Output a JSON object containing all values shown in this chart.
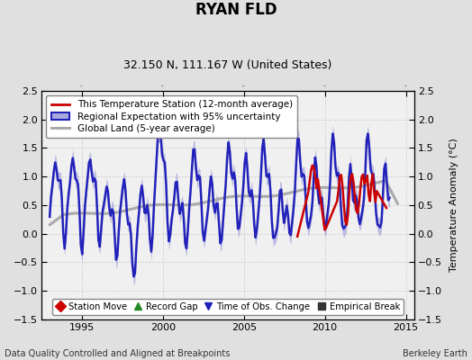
{
  "title": "RYAN FLD",
  "subtitle": "32.150 N, 111.167 W (United States)",
  "ylabel": "Temperature Anomaly (°C)",
  "xlim": [
    1992.5,
    2015.5
  ],
  "ylim": [
    -1.5,
    2.5
  ],
  "yticks": [
    -1.5,
    -1.0,
    -0.5,
    0.0,
    0.5,
    1.0,
    1.5,
    2.0,
    2.5
  ],
  "xticks": [
    1995,
    2000,
    2005,
    2010,
    2015
  ],
  "background_color": "#e0e0e0",
  "plot_bg_color": "#f0f0f0",
  "footer_left": "Data Quality Controlled and Aligned at Breakpoints",
  "footer_right": "Berkeley Earth",
  "legend1_entries": [
    {
      "label": "This Temperature Station (12-month average)",
      "color": "#cc0000",
      "lw": 1.8
    },
    {
      "label": "Regional Expectation with 95% uncertainty",
      "color": "#2222bb",
      "lw": 1.8,
      "fill_color": "#aaaadd"
    },
    {
      "label": "Global Land (5-year average)",
      "color": "#aaaaaa",
      "lw": 2.2
    }
  ],
  "legend2_entries": [
    {
      "label": "Station Move",
      "color": "#cc0000",
      "marker": "D"
    },
    {
      "label": "Record Gap",
      "color": "#228822",
      "marker": "^"
    },
    {
      "label": "Time of Obs. Change",
      "color": "#2222bb",
      "marker": "v"
    },
    {
      "label": "Empirical Break",
      "color": "#333333",
      "marker": "s"
    }
  ]
}
